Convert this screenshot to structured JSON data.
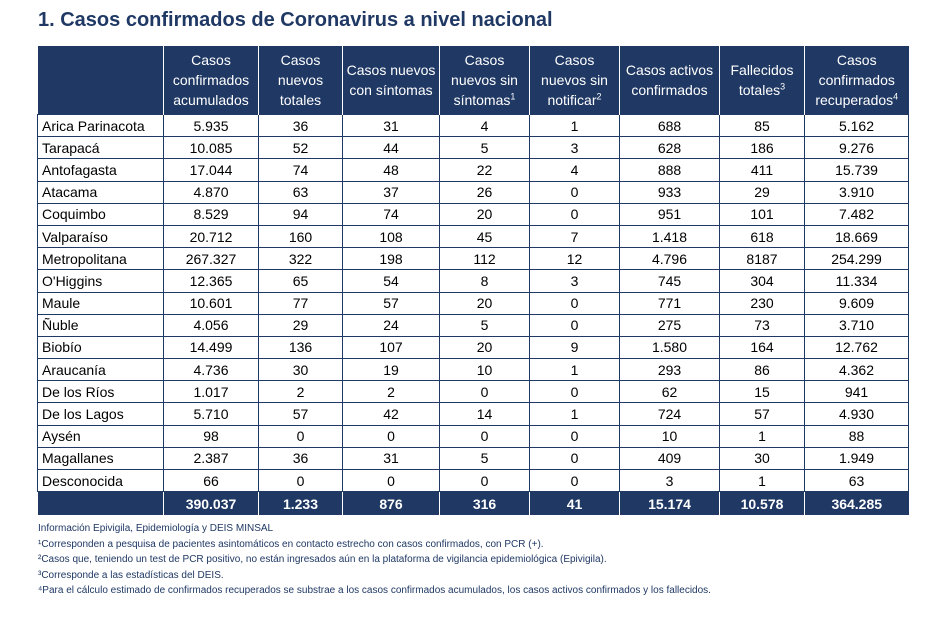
{
  "title": "1. Casos confirmados de Coronavirus a nivel nacional",
  "headers": [
    {
      "text": "",
      "sup": ""
    },
    {
      "text": "Casos confirmados acumulados",
      "sup": ""
    },
    {
      "text": "Casos nuevos totales",
      "sup": ""
    },
    {
      "text": "Casos nuevos con síntomas",
      "sup": ""
    },
    {
      "text": "Casos nuevos sin síntomas",
      "sup": "1"
    },
    {
      "text": "Casos nuevos sin notificar",
      "sup": "2"
    },
    {
      "text": "Casos activos confirmados",
      "sup": ""
    },
    {
      "text": "Fallecidos totales",
      "sup": "3"
    },
    {
      "text": "Casos confirmados recuperados",
      "sup": "4"
    }
  ],
  "rows": [
    [
      "Arica Parinacota",
      "5.935",
      "36",
      "31",
      "4",
      "1",
      "688",
      "85",
      "5.162"
    ],
    [
      "Tarapacá",
      "10.085",
      "52",
      "44",
      "5",
      "3",
      "628",
      "186",
      "9.276"
    ],
    [
      "Antofagasta",
      "17.044",
      "74",
      "48",
      "22",
      "4",
      "888",
      "411",
      "15.739"
    ],
    [
      "Atacama",
      "4.870",
      "63",
      "37",
      "26",
      "0",
      "933",
      "29",
      "3.910"
    ],
    [
      "Coquimbo",
      "8.529",
      "94",
      "74",
      "20",
      "0",
      "951",
      "101",
      "7.482"
    ],
    [
      "Valparaíso",
      "20.712",
      "160",
      "108",
      "45",
      "7",
      "1.418",
      "618",
      "18.669"
    ],
    [
      "Metropolitana",
      "267.327",
      "322",
      "198",
      "112",
      "12",
      "4.796",
      "8187",
      "254.299"
    ],
    [
      "O'Higgins",
      "12.365",
      "65",
      "54",
      "8",
      "3",
      "745",
      "304",
      "11.334"
    ],
    [
      "Maule",
      "10.601",
      "77",
      "57",
      "20",
      "0",
      "771",
      "230",
      "9.609"
    ],
    [
      "Ñuble",
      "4.056",
      "29",
      "24",
      "5",
      "0",
      "275",
      "73",
      "3.710"
    ],
    [
      "Biobío",
      "14.499",
      "136",
      "107",
      "20",
      "9",
      "1.580",
      "164",
      "12.762"
    ],
    [
      "Araucanía",
      "4.736",
      "30",
      "19",
      "10",
      "1",
      "293",
      "86",
      "4.362"
    ],
    [
      "De los Ríos",
      "1.017",
      "2",
      "2",
      "0",
      "0",
      "62",
      "15",
      "941"
    ],
    [
      "De los Lagos",
      "5.710",
      "57",
      "42",
      "14",
      "1",
      "724",
      "57",
      "4.930"
    ],
    [
      "Aysén",
      "98",
      "0",
      "0",
      "0",
      "0",
      "10",
      "1",
      "88"
    ],
    [
      "Magallanes",
      "2.387",
      "36",
      "31",
      "5",
      "0",
      "409",
      "30",
      "1.949"
    ],
    [
      "Desconocida",
      "66",
      "0",
      "0",
      "0",
      "0",
      "3",
      "1",
      "63"
    ]
  ],
  "totals": [
    "",
    "390.037",
    "1.233",
    "876",
    "316",
    "41",
    "15.174",
    "10.578",
    "364.285"
  ],
  "notes": [
    "Información Epivigila, Epidemiología y DEIS MINSAL",
    "¹Corresponden a pesquisa de pacientes asintomáticos en contacto estrecho con casos confirmados, con PCR (+).",
    "²Casos que, teniendo un test de PCR positivo, no están ingresados aún en la plataforma de vigilancia epidemiológica (Epivigila).",
    "³Corresponde a las estadísticas del DEIS.",
    "⁴Para el cálculo estimado de confirmados recuperados se substrae a los casos confirmados acumulados, los casos activos confirmados y los fallecidos."
  ],
  "colors": {
    "header_bg": "#1f3864",
    "border": "#1f3864",
    "title": "#1f3864"
  }
}
